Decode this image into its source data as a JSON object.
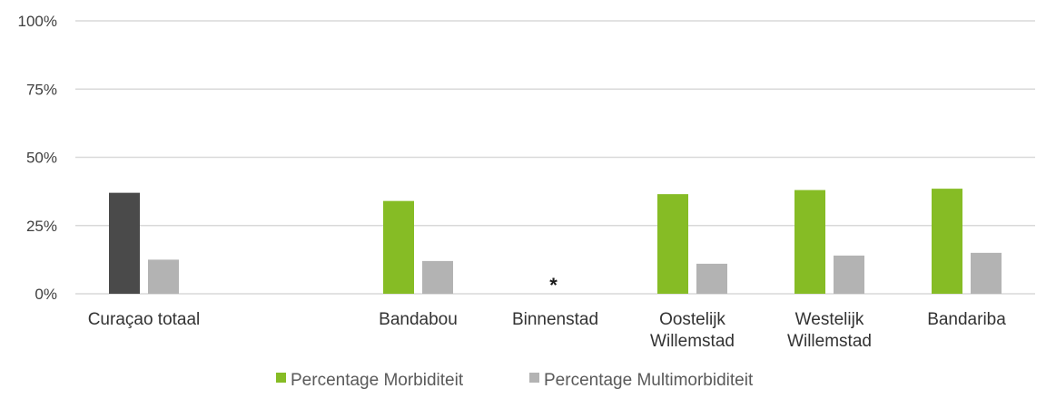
{
  "chart_data": {
    "type": "bar",
    "categories": [
      "Curaçao totaal",
      "",
      "Bandabou",
      "Binnenstad",
      "Oostelijk Willemstad",
      "Westelijk Willemstad",
      "Bandariba"
    ],
    "category_lines": [
      [
        "Curaçao totaal"
      ],
      [],
      [
        "Bandabou"
      ],
      [
        "Binnenstad"
      ],
      [
        "Oostelijk",
        "Willemstad"
      ],
      [
        "Westelijk",
        "Willemstad"
      ],
      [
        "Bandariba"
      ]
    ],
    "series": [
      {
        "name": "Percentage Morbiditeit",
        "values": [
          37,
          null,
          34,
          null,
          36.5,
          38,
          38.5
        ],
        "color": "#86bc25"
      },
      {
        "name": "Percentage Multimorbiditeit",
        "values": [
          12.5,
          null,
          12,
          null,
          11,
          14,
          15
        ],
        "color": "#b3b3b3"
      }
    ],
    "highlight": {
      "category_index": 0,
      "series_index": 0,
      "color": "#4a4a4a"
    },
    "annotations": [
      {
        "category_index": 3,
        "text": "*"
      }
    ],
    "ylim": [
      0,
      100
    ],
    "yticks": [
      0,
      25,
      50,
      75,
      100
    ],
    "ytick_labels": [
      "0%",
      "25%",
      "50%",
      "75%",
      "100%"
    ],
    "grid": true,
    "grid_color": "#d9d9d9",
    "legend_position": "bottom",
    "title": "",
    "xlabel": "",
    "ylabel": ""
  }
}
